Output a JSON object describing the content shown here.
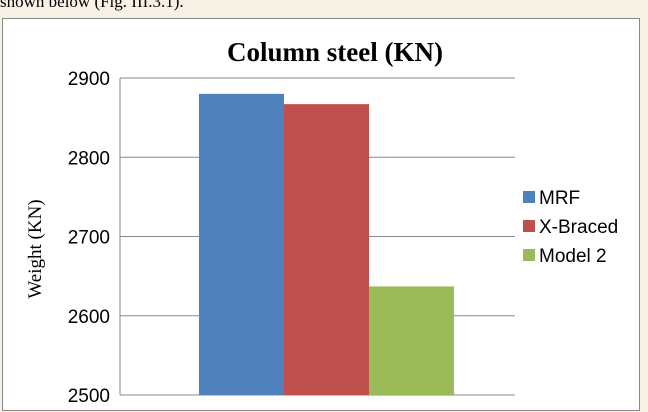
{
  "page": {
    "caption": "shown below (Fig. III.3.1)."
  },
  "chart_data": {
    "type": "bar",
    "title": "Column steel (KN)",
    "xlabel": "",
    "ylabel": "Weight (KN)",
    "ylim": [
      2500,
      2900
    ],
    "yticks": [
      2500,
      2600,
      2700,
      2800,
      2900
    ],
    "categories": [
      ""
    ],
    "grid": true,
    "legend_position": "right",
    "series": [
      {
        "name": "MRF",
        "values": [
          2880
        ],
        "color": "#4f81bd"
      },
      {
        "name": "X-Braced",
        "values": [
          2867
        ],
        "color": "#c0504d"
      },
      {
        "name": "Model 2",
        "values": [
          2637
        ],
        "color": "#9bbb59"
      }
    ]
  }
}
